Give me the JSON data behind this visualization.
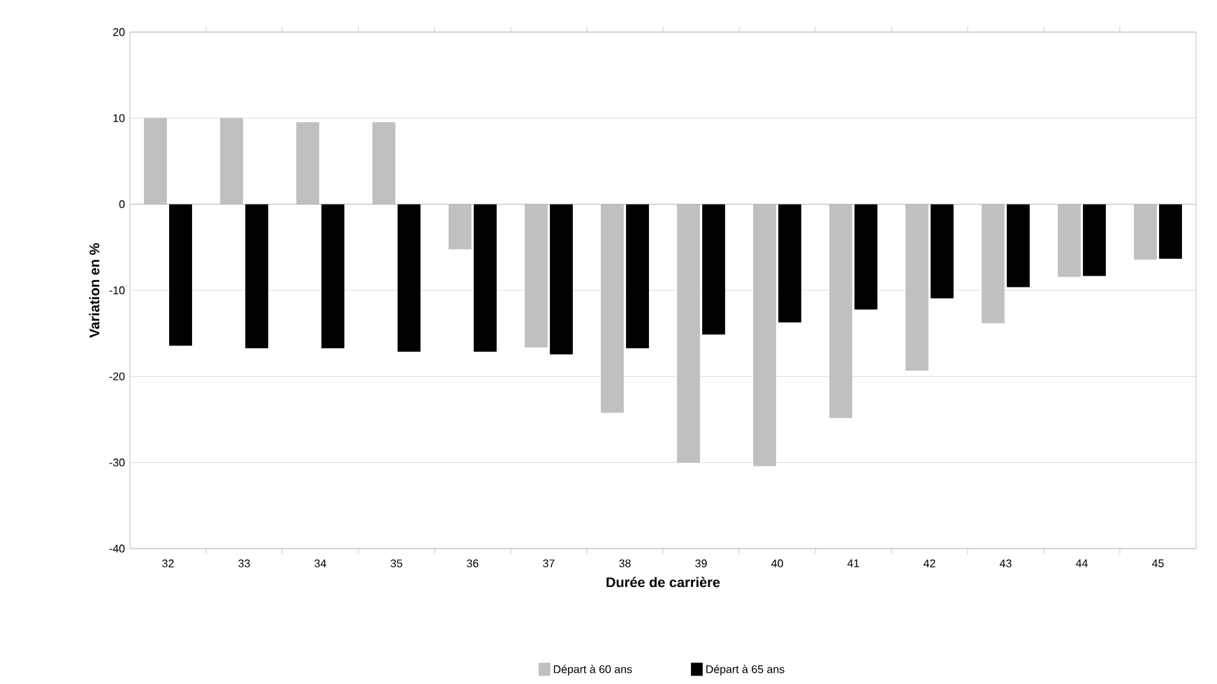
{
  "chart_data": {
    "type": "bar",
    "xlabel": "Durée de carrière",
    "ylabel": "Variation en %",
    "categories": [
      "32",
      "33",
      "34",
      "35",
      "36",
      "37",
      "38",
      "39",
      "40",
      "41",
      "42",
      "43",
      "44",
      "45"
    ],
    "series": [
      {
        "name": "Départ à 60 ans",
        "color": "#c0c0c0",
        "values": [
          10,
          10,
          9.5,
          9.5,
          -5.2,
          -16.6,
          -24.2,
          -30,
          -30.4,
          -24.8,
          -19.3,
          -13.8,
          -8.4,
          -6.4
        ]
      },
      {
        "name": "Départ à 65 ans",
        "color": "#000000",
        "values": [
          -16.4,
          -16.7,
          -16.7,
          -17.1,
          -17.1,
          -17.4,
          -16.7,
          -15.1,
          -13.7,
          -12.2,
          -10.9,
          -9.6,
          -8.3,
          -6.3
        ]
      }
    ],
    "ylim": [
      -40,
      20
    ],
    "yticks": [
      -40,
      -30,
      -20,
      -10,
      0,
      10,
      20
    ],
    "grid": "y",
    "legend": "bottom"
  }
}
